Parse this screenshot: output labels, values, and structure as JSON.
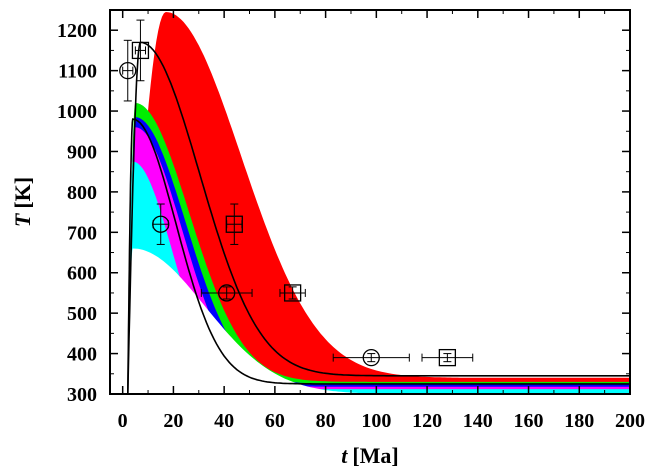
{
  "chart_data": {
    "type": "area",
    "xlabel": {
      "symbol": "t",
      "unit": "[Ma]"
    },
    "ylabel": {
      "symbol": "T",
      "unit": "[K]"
    },
    "xlim": [
      -5,
      200
    ],
    "ylim": [
      300,
      1250
    ],
    "x_ticks": [
      0,
      20,
      40,
      60,
      80,
      100,
      120,
      140,
      160,
      180,
      200
    ],
    "y_ticks": [
      300,
      400,
      500,
      600,
      700,
      800,
      900,
      1000,
      1100,
      1200
    ],
    "grid": false,
    "legend": "none",
    "bands": [
      {
        "color": "#ff0000",
        "peak_t": 17,
        "peak_T": 1245,
        "rise_start": 2,
        "decay": 42,
        "asymptote": 340
      },
      {
        "color": "#00ee00",
        "peak_t": 5,
        "peak_T": 1020,
        "rise_start": 2,
        "decay": 30,
        "asymptote": 330
      },
      {
        "color": "#0000ff",
        "peak_t": 5,
        "peak_T": 985,
        "rise_start": 2,
        "decay": 28,
        "asymptote": 325
      },
      {
        "color": "#ff00ff",
        "peak_t": 5,
        "peak_T": 960,
        "rise_start": 2,
        "decay": 26,
        "asymptote": 318
      },
      {
        "color": "#00ffff",
        "peak_t": 4,
        "peak_T": 875,
        "rise_start": 2,
        "decay": 22,
        "asymptote": 312
      },
      {
        "color": "#ffffff",
        "peak_t": 4,
        "peak_T": 660,
        "rise_start": 2,
        "decay": 40,
        "asymptote": 300
      }
    ],
    "curves": [
      {
        "name": "",
        "color": "#000000",
        "peak_t": 7,
        "peak_T": 1170,
        "rise_start": 2,
        "decay": 33,
        "asymptote": 345
      },
      {
        "name": "",
        "color": "#000000",
        "peak_t": 4,
        "peak_T": 980,
        "rise_start": 2,
        "decay": 24,
        "asymptote": 325
      }
    ],
    "series": [
      {
        "name": "",
        "marker": "square",
        "points": [
          {
            "x": 7,
            "y": 1150,
            "xerr": 2,
            "yerr": 75
          },
          {
            "x": 44,
            "y": 720,
            "xerr": 3,
            "yerr": 50
          },
          {
            "x": 67,
            "y": 550,
            "xerr": 5,
            "yerr": 15
          },
          {
            "x": 128,
            "y": 390,
            "xerr": 10,
            "yerr": 10
          }
        ]
      },
      {
        "name": "",
        "marker": "circle",
        "points": [
          {
            "x": 2,
            "y": 1100,
            "xerr": 2,
            "yerr": 75
          },
          {
            "x": 15,
            "y": 720,
            "xerr": 3,
            "yerr": 50
          },
          {
            "x": 41,
            "y": 550,
            "xerr": 10,
            "yerr": 15
          },
          {
            "x": 98,
            "y": 390,
            "xerr": 15,
            "yerr": 10
          }
        ]
      }
    ]
  }
}
